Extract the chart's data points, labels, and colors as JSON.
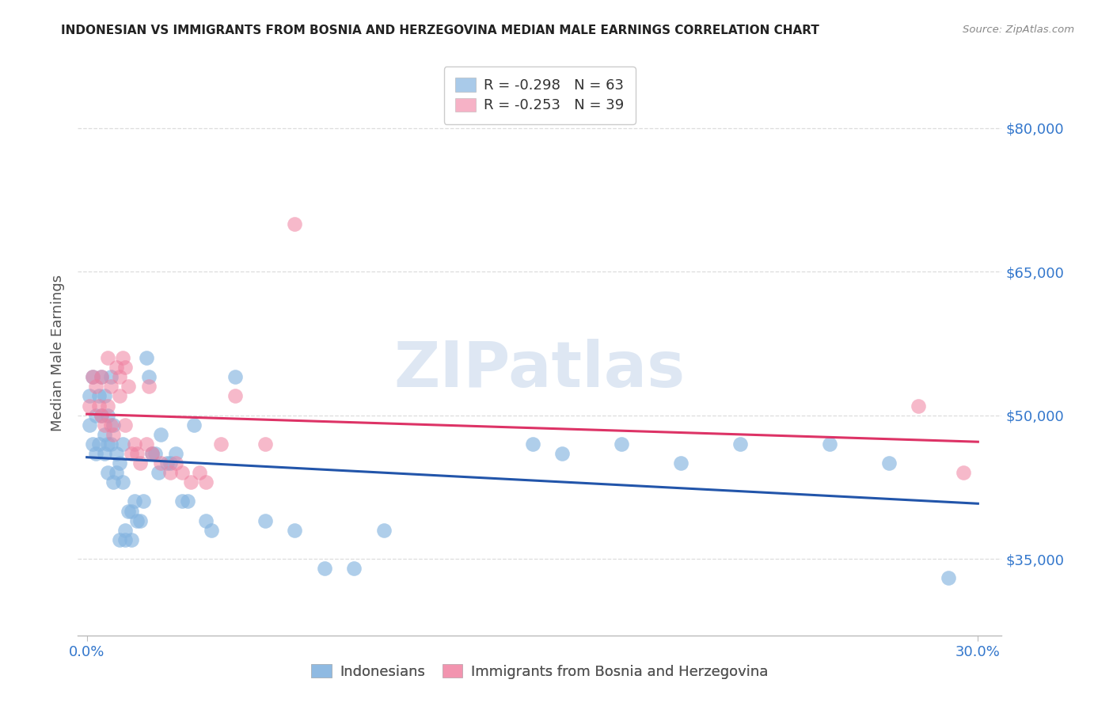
{
  "title": "INDONESIAN VS IMMIGRANTS FROM BOSNIA AND HERZEGOVINA MEDIAN MALE EARNINGS CORRELATION CHART",
  "source": "Source: ZipAtlas.com",
  "ylabel": "Median Male Earnings",
  "ytick_labels": [
    "$35,000",
    "$50,000",
    "$65,000",
    "$80,000"
  ],
  "ytick_values": [
    35000,
    50000,
    65000,
    80000
  ],
  "ylim": [
    27000,
    86000
  ],
  "xlim": [
    -0.003,
    0.308
  ],
  "blue_color": "#85B4E0",
  "pink_color": "#F080A0",
  "blue_line_color": "#2255AA",
  "pink_line_color": "#DD3366",
  "tick_color": "#3377CC",
  "blue_label": "Indonesians",
  "pink_label": "Immigrants from Bosnia and Herzegovina",
  "blue_R": "R = -0.298",
  "blue_N": "N = 63",
  "pink_R": "R = -0.253",
  "pink_N": "N = 39",
  "blue_x": [
    0.001,
    0.001,
    0.002,
    0.002,
    0.003,
    0.003,
    0.004,
    0.004,
    0.005,
    0.005,
    0.006,
    0.006,
    0.006,
    0.007,
    0.007,
    0.007,
    0.008,
    0.008,
    0.009,
    0.009,
    0.01,
    0.01,
    0.011,
    0.011,
    0.012,
    0.012,
    0.013,
    0.013,
    0.014,
    0.015,
    0.015,
    0.016,
    0.017,
    0.018,
    0.019,
    0.02,
    0.021,
    0.022,
    0.023,
    0.024,
    0.025,
    0.027,
    0.028,
    0.03,
    0.032,
    0.034,
    0.036,
    0.04,
    0.042,
    0.05,
    0.06,
    0.07,
    0.08,
    0.09,
    0.1,
    0.15,
    0.16,
    0.18,
    0.2,
    0.22,
    0.25,
    0.27,
    0.29
  ],
  "blue_y": [
    49000,
    52000,
    54000,
    47000,
    50000,
    46000,
    52000,
    47000,
    50000,
    54000,
    48000,
    52000,
    46000,
    50000,
    47000,
    44000,
    54000,
    47000,
    49000,
    43000,
    46000,
    44000,
    45000,
    37000,
    47000,
    43000,
    38000,
    37000,
    40000,
    40000,
    37000,
    41000,
    39000,
    39000,
    41000,
    56000,
    54000,
    46000,
    46000,
    44000,
    48000,
    45000,
    45000,
    46000,
    41000,
    41000,
    49000,
    39000,
    38000,
    54000,
    39000,
    38000,
    34000,
    34000,
    38000,
    47000,
    46000,
    47000,
    45000,
    47000,
    47000,
    45000,
    33000
  ],
  "pink_x": [
    0.001,
    0.002,
    0.003,
    0.004,
    0.005,
    0.005,
    0.006,
    0.007,
    0.007,
    0.008,
    0.008,
    0.009,
    0.01,
    0.011,
    0.011,
    0.012,
    0.013,
    0.013,
    0.014,
    0.015,
    0.016,
    0.017,
    0.018,
    0.02,
    0.021,
    0.022,
    0.025,
    0.028,
    0.03,
    0.032,
    0.035,
    0.038,
    0.04,
    0.045,
    0.05,
    0.06,
    0.07,
    0.28,
    0.295
  ],
  "pink_y": [
    51000,
    54000,
    53000,
    51000,
    50000,
    54000,
    49000,
    51000,
    56000,
    49000,
    53000,
    48000,
    55000,
    54000,
    52000,
    56000,
    55000,
    49000,
    53000,
    46000,
    47000,
    46000,
    45000,
    47000,
    53000,
    46000,
    45000,
    44000,
    45000,
    44000,
    43000,
    44000,
    43000,
    47000,
    52000,
    47000,
    70000,
    51000,
    44000
  ],
  "watermark": "ZIPatlas",
  "background_color": "#FFFFFF",
  "grid_color": "#DDDDDD",
  "legend_border_color": "#CCCCCC",
  "spine_color": "#BBBBBB"
}
